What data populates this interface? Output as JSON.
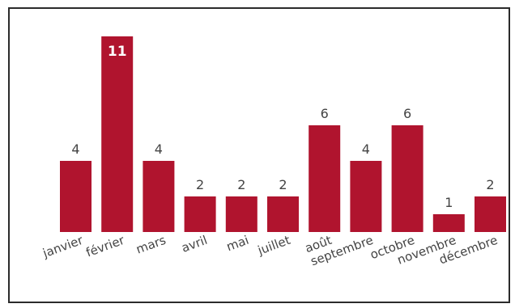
{
  "colors": {
    "bar": "#b0142e",
    "frame": "#2b2b2b",
    "label": "#444444"
  },
  "chart_data": {
    "type": "bar",
    "categories": [
      "janvier",
      "février",
      "mars",
      "avril",
      "mai",
      "juillet",
      "août",
      "septembre",
      "octobre",
      "novembre",
      "décembre"
    ],
    "values": [
      4,
      11,
      4,
      2,
      2,
      2,
      6,
      4,
      6,
      1,
      2
    ],
    "title": "",
    "xlabel": "",
    "ylabel": "",
    "ylim": [
      0,
      11
    ],
    "grid": false,
    "legend": "none",
    "data_labels": true
  }
}
